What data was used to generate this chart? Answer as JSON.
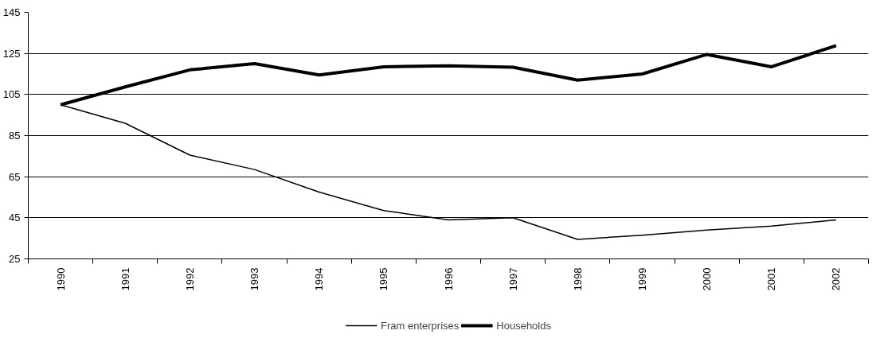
{
  "chart_data": {
    "type": "line",
    "categories": [
      "1990",
      "1991",
      "1992",
      "1993",
      "1994",
      "1995",
      "1996",
      "1997",
      "1998",
      "1999",
      "2000",
      "2001",
      "2002"
    ],
    "series": [
      {
        "name": "Fram enterprises",
        "color": "#000000",
        "values": [
          100,
          91,
          75.5,
          68.5,
          57.5,
          48.5,
          44,
          45,
          34.5,
          36.5,
          39,
          41,
          44
        ]
      },
      {
        "name": "Households",
        "color": "#000000",
        "values": [
          100,
          108.7,
          117,
          120,
          114.5,
          118.5,
          119,
          118.3,
          112,
          115,
          124.5,
          118.5,
          128.8
        ]
      }
    ],
    "ylim": [
      25,
      145
    ],
    "yticks": [
      25,
      45,
      65,
      85,
      105,
      125,
      145
    ],
    "grid": "y",
    "legend": "bottom",
    "line_style": "solid",
    "marker": "none"
  }
}
